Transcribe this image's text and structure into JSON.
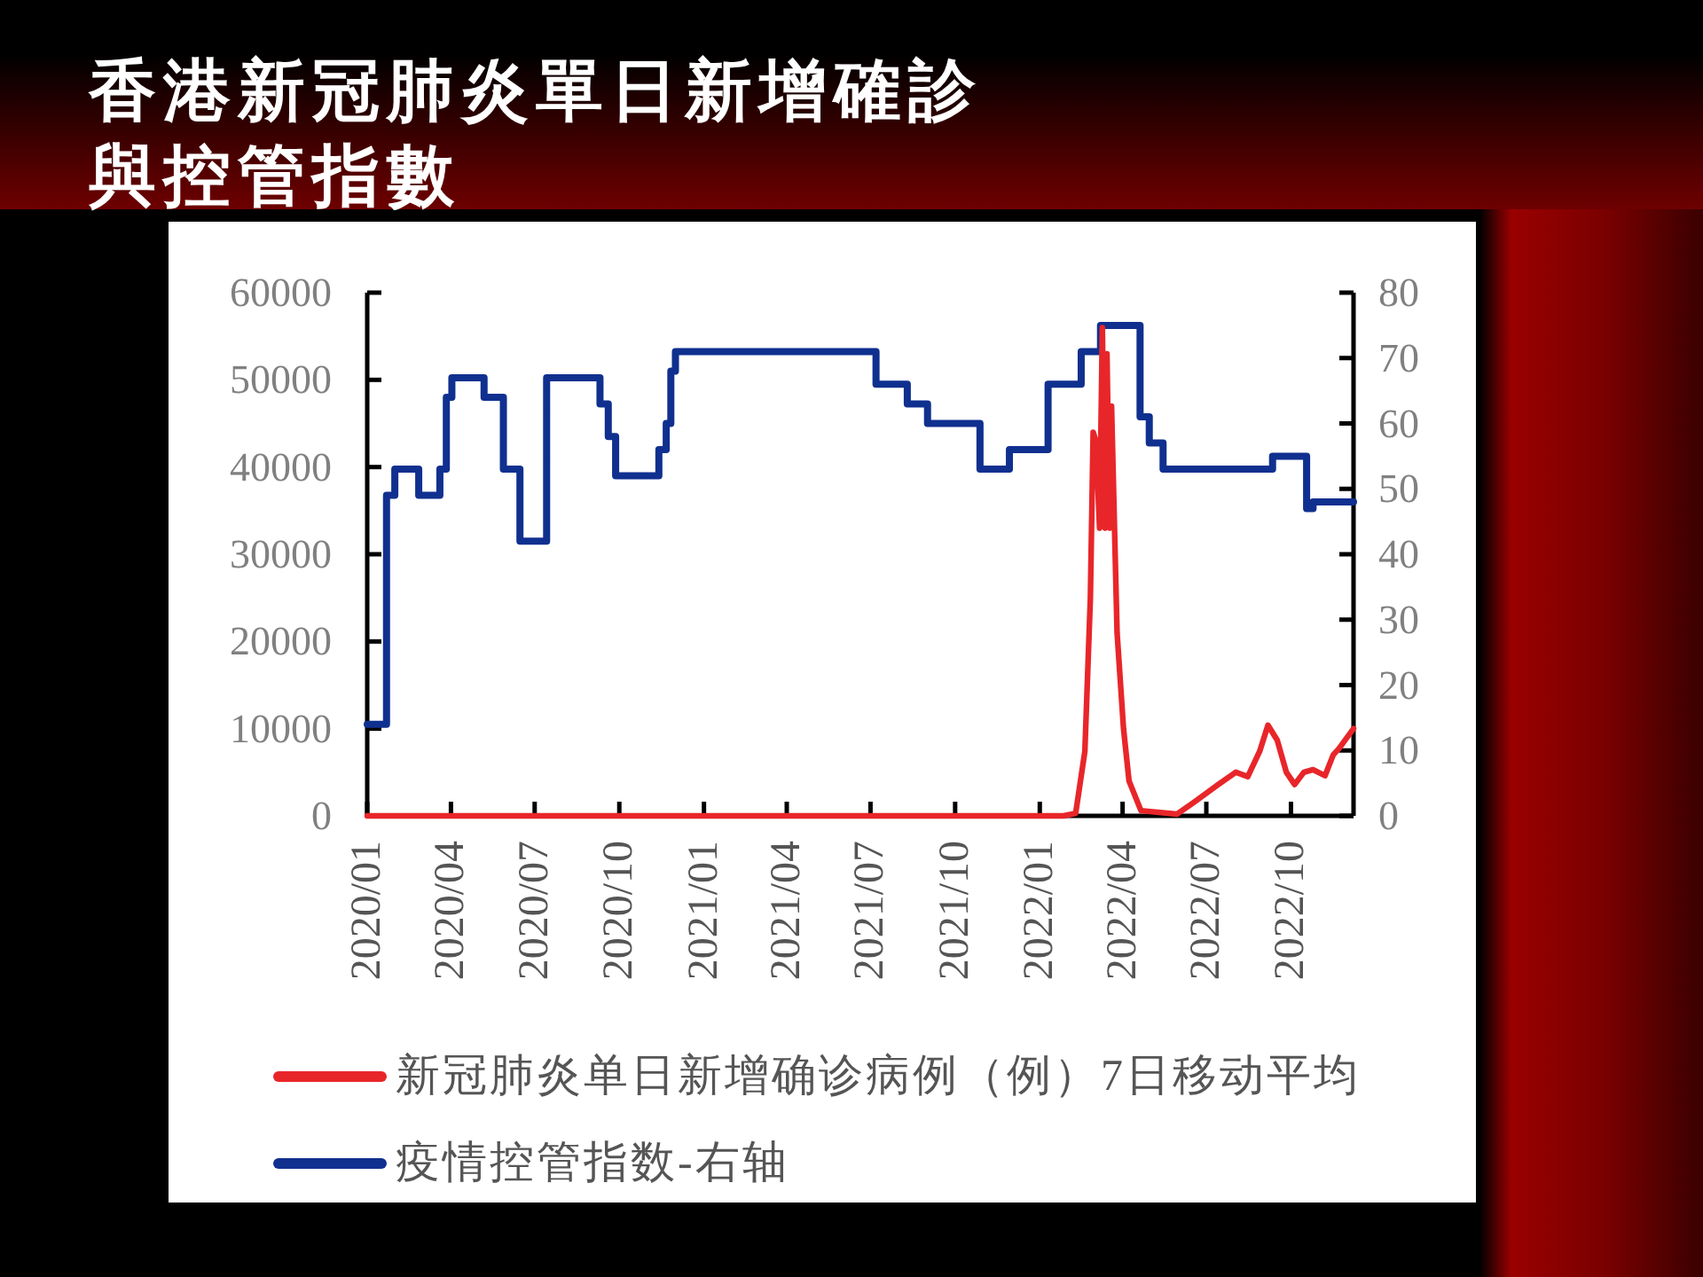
{
  "chart_data": {
    "type": "line",
    "title": "香港新冠肺炎單日新增確診與控管指數",
    "xlim": [
      "2020-01-01",
      "2022-12-08"
    ],
    "xticks": [
      {
        "value": "2020-01",
        "label": "2020/01"
      },
      {
        "value": "2020-04",
        "label": "2020/04"
      },
      {
        "value": "2020-07",
        "label": "2020/07"
      },
      {
        "value": "2020-10",
        "label": "2020/10"
      },
      {
        "value": "2021-01",
        "label": "2021/01"
      },
      {
        "value": "2021-04",
        "label": "2021/04"
      },
      {
        "value": "2021-07",
        "label": "2021/07"
      },
      {
        "value": "2021-10",
        "label": "2021/10"
      },
      {
        "value": "2022-01",
        "label": "2022/01"
      },
      {
        "value": "2022-04",
        "label": "2022/04"
      },
      {
        "value": "2022-07",
        "label": "2022/07"
      },
      {
        "value": "2022-10",
        "label": "2022/10"
      }
    ],
    "ylim": [
      0,
      60000
    ],
    "yticks": [
      0,
      10000,
      20000,
      30000,
      40000,
      50000,
      60000
    ],
    "y2lim": [
      0,
      80
    ],
    "y2ticks": [
      0,
      10,
      20,
      30,
      40,
      50,
      60,
      70,
      80
    ],
    "legend": "bottom",
    "series": [
      {
        "name": "新冠肺炎单日新增确诊病例（例）7日移动平均",
        "color": "#e8262a",
        "type": "line",
        "x": [
          "2020-01-01",
          "2022-01-27",
          "2022-02-09",
          "2022-02-19",
          "2022-02-25",
          "2022-02-28",
          "2022-03-03",
          "2022-03-07",
          "2022-03-10",
          "2022-03-13",
          "2022-03-15",
          "2022-03-18",
          "2022-03-20",
          "2022-03-26",
          "2022-04-02",
          "2022-04-08",
          "2022-04-21",
          "2022-05-30",
          "2022-06-18",
          "2022-07-14",
          "2022-08-02",
          "2022-08-15",
          "2022-08-28",
          "2022-09-06",
          "2022-09-16",
          "2022-09-26",
          "2022-10-05",
          "2022-10-15",
          "2022-10-25",
          "2022-11-07",
          "2022-11-16",
          "2022-11-22",
          "2022-11-29",
          "2022-12-08"
        ],
        "values": [
          0,
          0,
          300,
          7400,
          25000,
          44000,
          43000,
          33000,
          56000,
          33000,
          53000,
          33000,
          47000,
          21000,
          10000,
          4000,
          600,
          200,
          1600,
          3600,
          5000,
          4500,
          7400,
          10400,
          8700,
          5000,
          3600,
          5000,
          5300,
          4600,
          7000,
          7700,
          8700,
          10000
        ]
      },
      {
        "name": "疫情控管指数-右轴",
        "color": "#10308f",
        "type": "step",
        "axis": "y2",
        "x": [
          "2020-01-01",
          "2020-01-22",
          "2020-01-31",
          "2020-02-26",
          "2020-03-20",
          "2020-03-27",
          "2020-04-02",
          "2020-05-07",
          "2020-05-28",
          "2020-06-15",
          "2020-07-14",
          "2020-09-10",
          "2020-09-19",
          "2020-09-27",
          "2020-11-13",
          "2020-11-21",
          "2020-11-26",
          "2020-12-01",
          "2021-07-07",
          "2021-08-10",
          "2021-09-01",
          "2021-10-28",
          "2021-11-29",
          "2022-01-10",
          "2022-02-15",
          "2022-03-08",
          "2022-04-20",
          "2022-04-30",
          "2022-05-15",
          "2022-09-11",
          "2022-10-18",
          "2022-10-25",
          "2022-12-08"
        ],
        "values": [
          14,
          49,
          53,
          49,
          53,
          64,
          67,
          64,
          53,
          42,
          67,
          63,
          58,
          52,
          56,
          60,
          68,
          71,
          66,
          63,
          60,
          53,
          56,
          66,
          71,
          75,
          61,
          57,
          53,
          55,
          47,
          48,
          48
        ]
      }
    ]
  }
}
